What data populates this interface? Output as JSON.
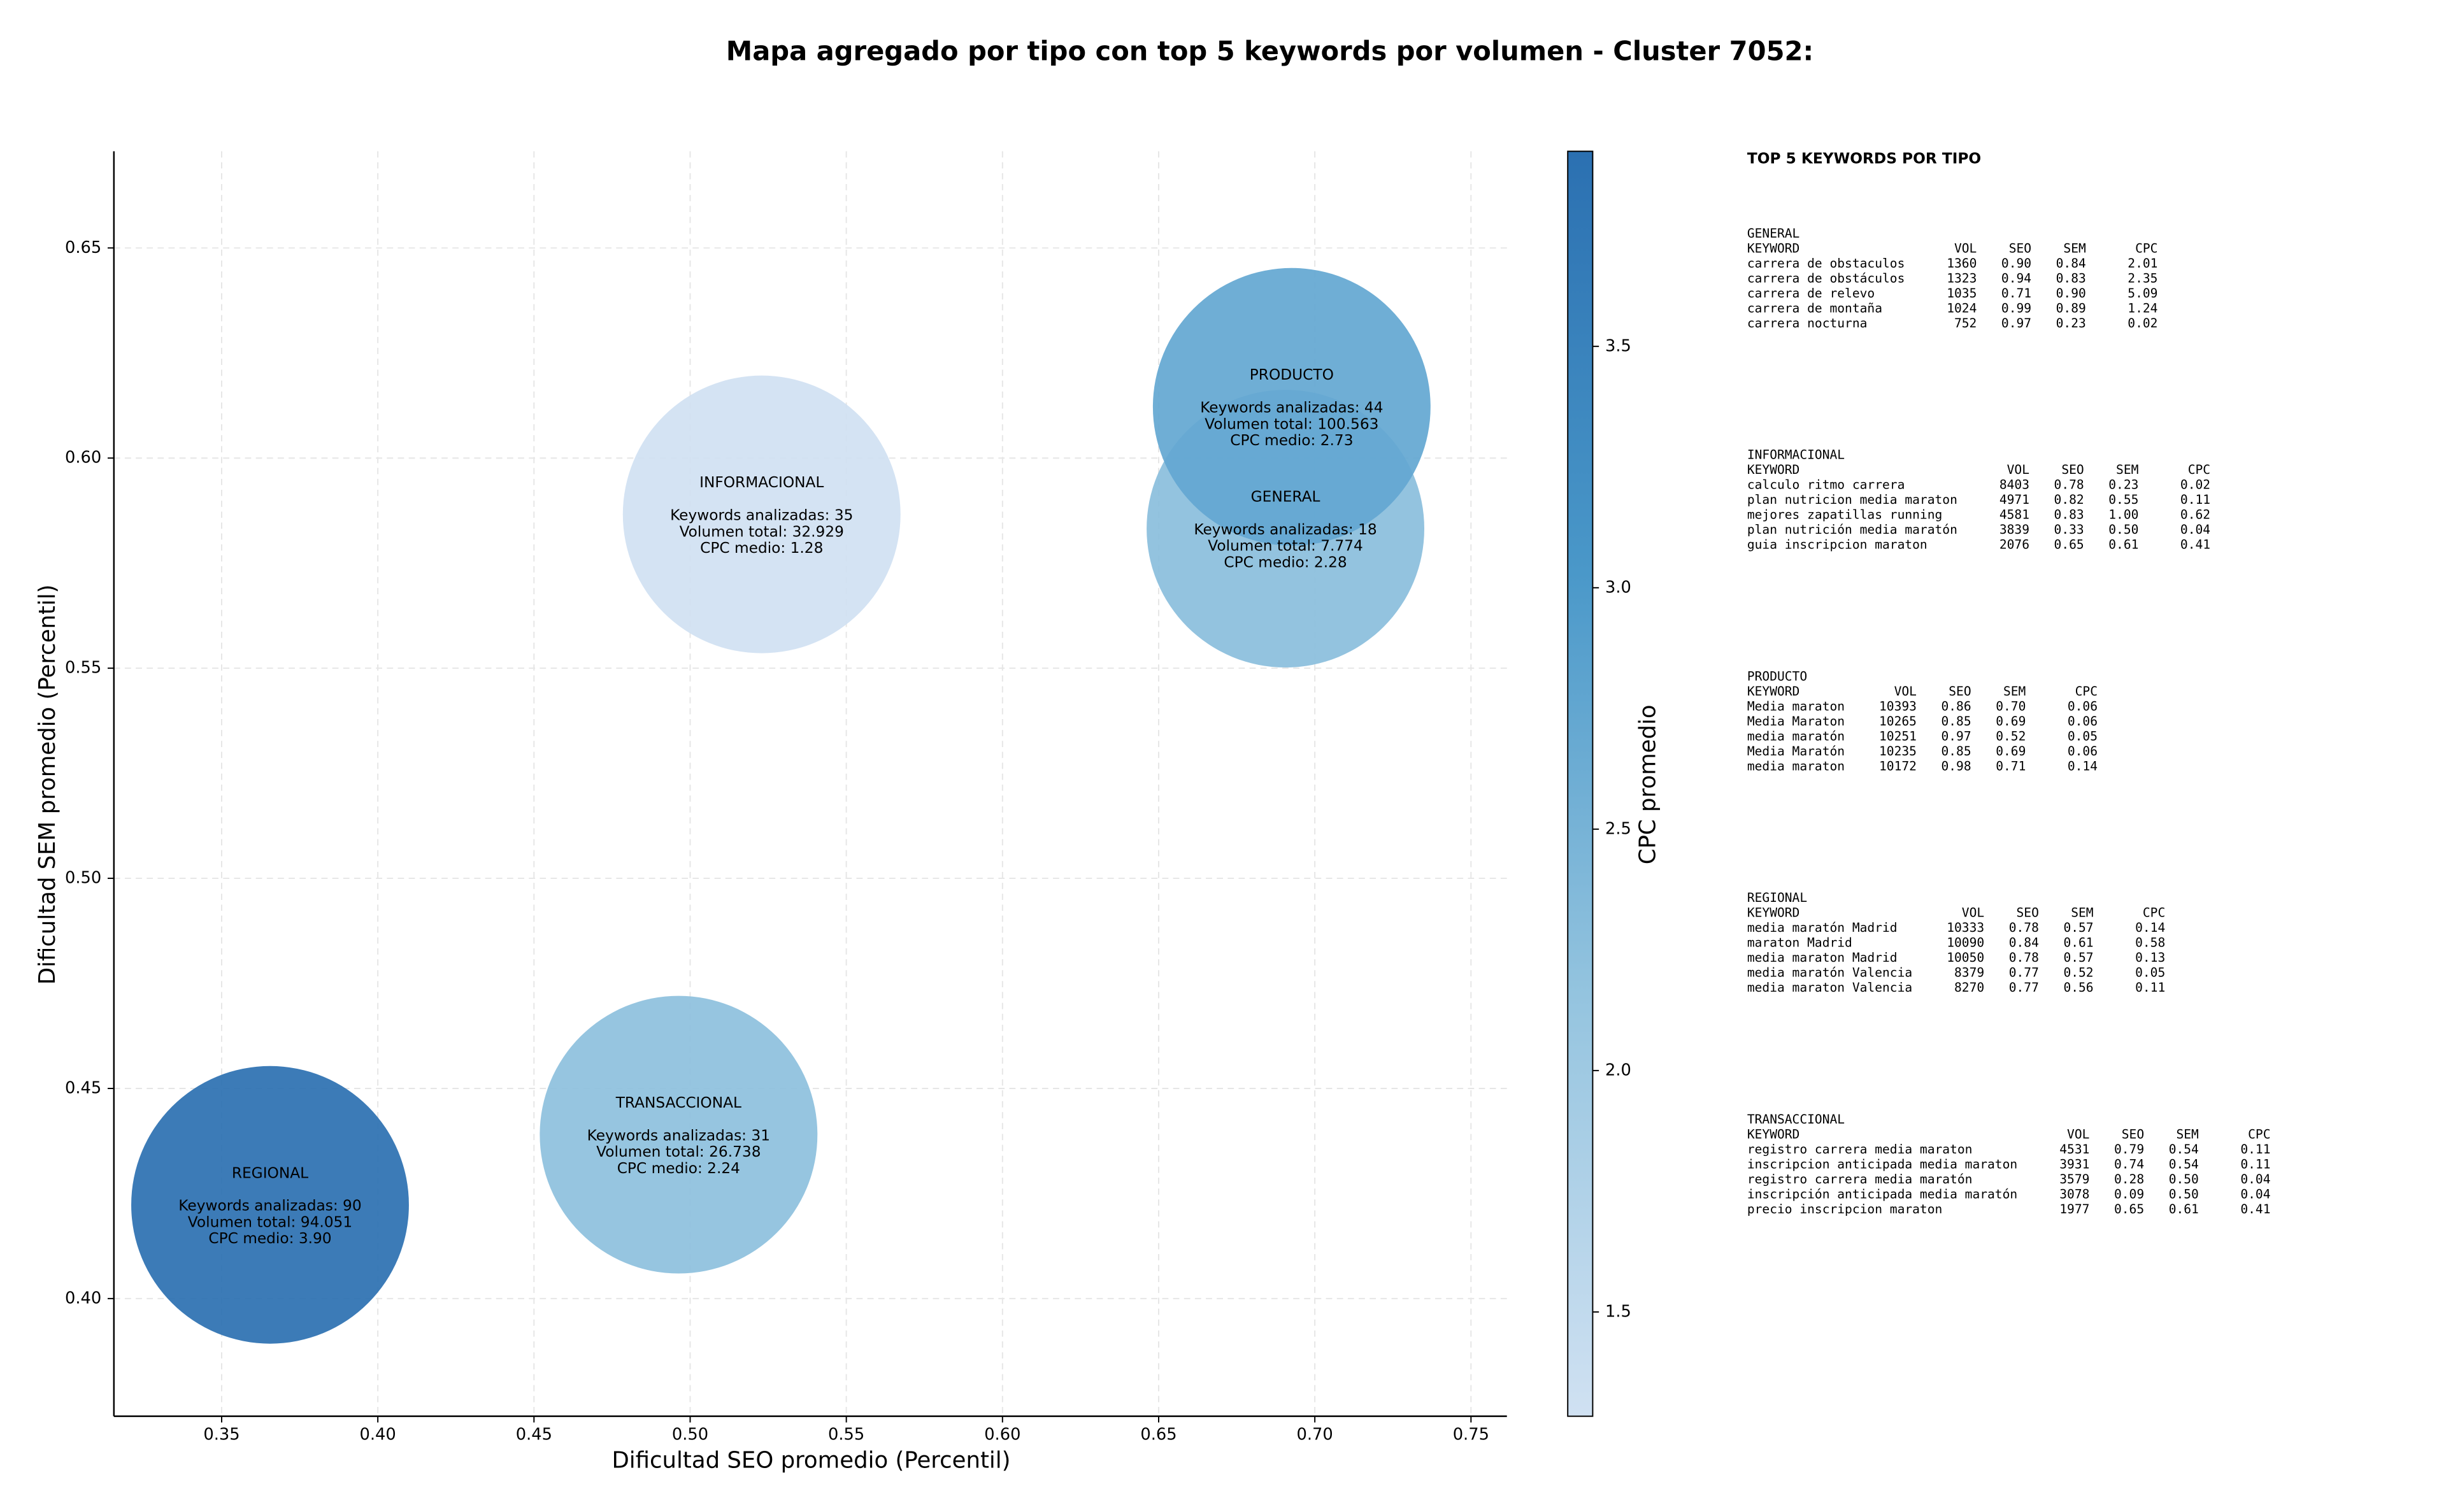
{
  "chart_data": {
    "type": "bubble",
    "title": "Mapa agregado por tipo con top 5 keywords por volumen - Cluster 7052:",
    "x_label": "Dificultad SEO promedio (Percentil)",
    "y_label": "Dificultad SEM promedio (Percentil)",
    "xlim": [
      0.3155,
      0.7615
    ],
    "ylim": [
      0.372,
      0.673
    ],
    "xticks": [
      0.35,
      {
        "value": 0.4,
        "label": "0.40"
      },
      0.45,
      {
        "value": 0.5,
        "label": "0.50"
      },
      0.55,
      {
        "value": 0.6,
        "label": "0.60"
      },
      0.65,
      {
        "value": 0.7,
        "label": "0.70"
      },
      0.75
    ],
    "yticks": [
      {
        "value": 0.4,
        "label": "0.40"
      },
      0.45,
      {
        "value": 0.5,
        "label": "0.50"
      },
      0.55,
      {
        "value": 0.6,
        "label": "0.60"
      },
      0.65
    ],
    "grid": true,
    "colormap": [
      "#d0e1f2",
      "#94c4df",
      "#4a98c9",
      "#2b70b1"
    ],
    "colorbar": {
      "label": "CPC promedio",
      "clim": [
        1.284,
        3.904
      ],
      "ticks": [
        1.5,
        {
          "value": 2,
          "label": "2.0"
        },
        2.5,
        {
          "value": 3,
          "label": "3.0"
        },
        3.5
      ]
    },
    "bubbles": [
      {
        "name": "GENERAL",
        "x": 0.6906,
        "y": 0.5832,
        "cpc": 2.28,
        "details": [
          "Keywords analizadas: 18",
          "Volumen total: 7.774",
          "CPC medio: 2.28"
        ]
      },
      {
        "name": "INFORMACIONAL",
        "x": 0.5229,
        "y": 0.5866,
        "cpc": 1.28,
        "details": [
          "Keywords analizadas: 35",
          "Volumen total: 32.929",
          "CPC medio: 1.28"
        ]
      },
      {
        "name": "PRODUCTO",
        "x": 0.6926,
        "y": 0.6122,
        "cpc": 2.73,
        "details": [
          "Keywords analizadas: 44",
          "Volumen total: 100.563",
          "CPC medio: 2.73"
        ]
      },
      {
        "name": "REGIONAL",
        "x": 0.3655,
        "y": 0.4223,
        "cpc": 3.9,
        "details": [
          "Keywords analizadas: 90",
          "Volumen total: 94.051",
          "CPC medio: 3.90"
        ]
      },
      {
        "name": "TRANSACCIONAL",
        "x": 0.4963,
        "y": 0.439,
        "cpc": 2.24,
        "details": [
          "Keywords analizadas: 31",
          "Volumen total: 26.738",
          "CPC medio: 2.24"
        ]
      }
    ]
  },
  "panel": {
    "title": "TOP 5 KEYWORDS POR TIPO",
    "header": [
      "KEYWORD",
      "VOL",
      "SEO",
      "SEM",
      "CPC"
    ],
    "sections": [
      {
        "name": "GENERAL",
        "rows": [
          [
            "carrera de obstaculos",
            "1360",
            "0.90",
            "0.84",
            "2.01"
          ],
          [
            "carrera de obstáculos",
            "1323",
            "0.94",
            "0.83",
            "2.35"
          ],
          [
            "carrera de relevo",
            "1035",
            "0.71",
            "0.90",
            "5.09"
          ],
          [
            "carrera de montaña",
            "1024",
            "0.99",
            "0.89",
            "1.24"
          ],
          [
            "carrera nocturna",
            "752",
            "0.97",
            "0.23",
            "0.02"
          ]
        ]
      },
      {
        "name": "INFORMACIONAL",
        "rows": [
          [
            "calculo ritmo carrera",
            "8403",
            "0.78",
            "0.23",
            "0.02"
          ],
          [
            "plan nutricion media maraton",
            "4971",
            "0.82",
            "0.55",
            "0.11"
          ],
          [
            "mejores zapatillas running",
            "4581",
            "0.83",
            "1.00",
            "0.62"
          ],
          [
            "plan nutrición media maratón",
            "3839",
            "0.33",
            "0.50",
            "0.04"
          ],
          [
            "guia inscripcion maraton",
            "2076",
            "0.65",
            "0.61",
            "0.41"
          ]
        ]
      },
      {
        "name": "PRODUCTO",
        "rows": [
          [
            "Media maraton",
            "10393",
            "0.86",
            "0.70",
            "0.06"
          ],
          [
            "Media Maraton",
            "10265",
            "0.85",
            "0.69",
            "0.06"
          ],
          [
            "media maratón",
            "10251",
            "0.97",
            "0.52",
            "0.05"
          ],
          [
            "Media Maratón",
            "10235",
            "0.85",
            "0.69",
            "0.06"
          ],
          [
            "media maraton",
            "10172",
            "0.98",
            "0.71",
            "0.14"
          ]
        ]
      },
      {
        "name": "REGIONAL",
        "rows": [
          [
            "media maratón Madrid",
            "10333",
            "0.78",
            "0.57",
            "0.14"
          ],
          [
            "maraton Madrid",
            "10090",
            "0.84",
            "0.61",
            "0.58"
          ],
          [
            "media maraton Madrid",
            "10050",
            "0.78",
            "0.57",
            "0.13"
          ],
          [
            "media maratón Valencia",
            "8379",
            "0.77",
            "0.52",
            "0.05"
          ],
          [
            "media maraton Valencia",
            "8270",
            "0.77",
            "0.56",
            "0.11"
          ]
        ]
      },
      {
        "name": "TRANSACCIONAL",
        "rows": [
          [
            "registro carrera media maraton",
            "4531",
            "0.79",
            "0.54",
            "0.11"
          ],
          [
            "inscripcion anticipada media maraton",
            "3931",
            "0.74",
            "0.54",
            "0.11"
          ],
          [
            "registro carrera media maratón",
            "3579",
            "0.28",
            "0.50",
            "0.04"
          ],
          [
            "inscripción anticipada media maratón",
            "3078",
            "0.09",
            "0.50",
            "0.04"
          ],
          [
            "precio inscripcion maraton",
            "1977",
            "0.65",
            "0.61",
            "0.41"
          ]
        ]
      }
    ]
  }
}
